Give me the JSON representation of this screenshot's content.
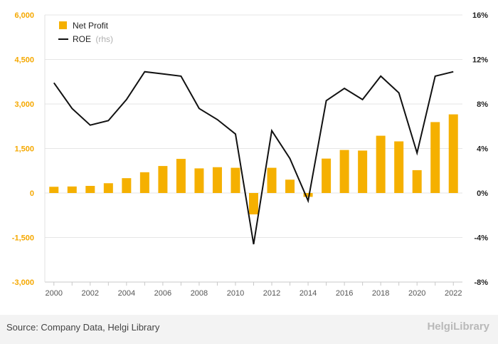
{
  "chart_data": {
    "type": "bar",
    "categories": [
      "2000",
      "2001",
      "2002",
      "2003",
      "2004",
      "2005",
      "2006",
      "2007",
      "2008",
      "2009",
      "2010",
      "2011",
      "2012",
      "2013",
      "2014",
      "2015",
      "2016",
      "2017",
      "2018",
      "2019",
      "2020",
      "2021",
      "2022"
    ],
    "x_tick_labels": [
      "2000",
      "2002",
      "2004",
      "2006",
      "2008",
      "2010",
      "2012",
      "2014",
      "2016",
      "2018",
      "2020",
      "2022"
    ],
    "series": [
      {
        "name": "Net Profit",
        "type": "bar",
        "axis": "left",
        "color": "#f5b000",
        "values": [
          210,
          220,
          240,
          330,
          500,
          700,
          910,
          1150,
          830,
          870,
          850,
          -720,
          850,
          450,
          -130,
          1160,
          1450,
          1430,
          1930,
          1740,
          770,
          2390,
          2650
        ]
      },
      {
        "name": "ROE",
        "suffix": "(rhs)",
        "type": "line",
        "axis": "right",
        "color": "#111111",
        "values": [
          9.9,
          7.6,
          6.1,
          6.5,
          8.4,
          10.9,
          10.7,
          10.5,
          7.6,
          6.6,
          5.3,
          -4.6,
          5.6,
          3.1,
          -0.7,
          8.3,
          9.4,
          8.4,
          10.5,
          9.0,
          3.6,
          10.5,
          10.9
        ]
      }
    ],
    "y_left": {
      "min": -3000,
      "max": 6000,
      "ticks": [
        -3000,
        -1500,
        0,
        1500,
        3000,
        4500,
        6000
      ],
      "tick_labels": [
        "-3,000",
        "-1,500",
        "0",
        "1,500",
        "3,000",
        "4,500",
        "6,000"
      ]
    },
    "y_right": {
      "min": -8,
      "max": 16,
      "ticks": [
        -8,
        -4,
        0,
        4,
        8,
        12,
        16
      ],
      "tick_labels": [
        "-8%",
        "-4%",
        "0%",
        "4%",
        "8%",
        "12%",
        "16%"
      ]
    },
    "legend_position": "top-left",
    "grid": true
  },
  "footer": {
    "source": "Source: Company Data, Helgi Library",
    "brand": "HelgiLibrary"
  },
  "colors": {
    "bar": "#f5b000",
    "line": "#111111",
    "grid": "#e6e6e6",
    "left_ticks": "#f5a800"
  }
}
